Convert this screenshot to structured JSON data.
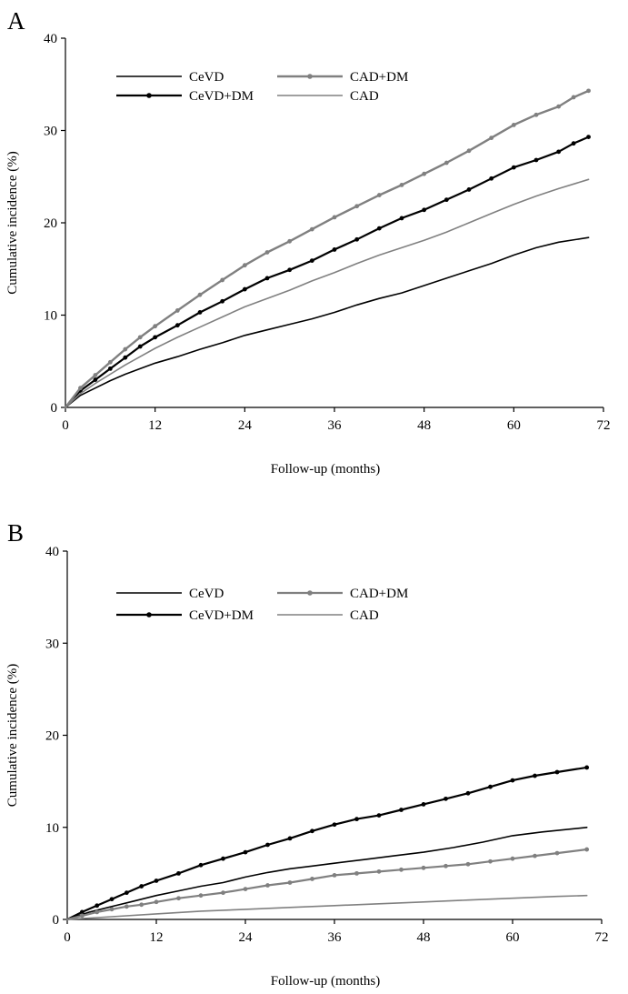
{
  "chart_data": [
    {
      "panel": "A",
      "type": "line",
      "title": "",
      "xlabel": "Follow-up (months)",
      "ylabel": "Cumulative incidence (%)",
      "xlim": [
        0,
        72
      ],
      "ylim": [
        0,
        40
      ],
      "xticks": [
        0,
        12,
        24,
        36,
        48,
        60,
        72
      ],
      "yticks": [
        0,
        10,
        20,
        30,
        40
      ],
      "grid": false,
      "legend_position": "top-left",
      "series": [
        {
          "name": "CeVD",
          "color": "#000000",
          "width": 1.6,
          "markers": false,
          "x": [
            0,
            2,
            4,
            6,
            8,
            10,
            12,
            15,
            18,
            21,
            24,
            27,
            30,
            33,
            36,
            39,
            42,
            45,
            48,
            51,
            54,
            57,
            60,
            63,
            66,
            70
          ],
          "y": [
            0,
            1.3,
            2.1,
            2.9,
            3.6,
            4.2,
            4.8,
            5.5,
            6.3,
            7.0,
            7.8,
            8.4,
            9.0,
            9.6,
            10.3,
            11.1,
            11.8,
            12.4,
            13.2,
            14.0,
            14.8,
            15.6,
            16.5,
            17.3,
            17.9,
            18.4
          ]
        },
        {
          "name": "CeVD+DM",
          "color": "#000000",
          "width": 2.2,
          "markers": true,
          "x": [
            0,
            2,
            4,
            6,
            8,
            10,
            12,
            15,
            18,
            21,
            24,
            27,
            30,
            33,
            36,
            39,
            42,
            45,
            48,
            51,
            54,
            57,
            60,
            63,
            66,
            68,
            70
          ],
          "y": [
            0,
            1.8,
            3.0,
            4.2,
            5.4,
            6.6,
            7.6,
            8.9,
            10.3,
            11.5,
            12.8,
            14.0,
            14.9,
            15.9,
            17.1,
            18.2,
            19.4,
            20.5,
            21.4,
            22.5,
            23.6,
            24.8,
            26.0,
            26.8,
            27.7,
            28.6,
            29.3
          ]
        },
        {
          "name": "CAD+DM",
          "color": "#808080",
          "width": 2.4,
          "markers": true,
          "x": [
            0,
            2,
            4,
            6,
            8,
            10,
            12,
            15,
            18,
            21,
            24,
            27,
            30,
            33,
            36,
            39,
            42,
            45,
            48,
            51,
            54,
            57,
            60,
            63,
            66,
            68,
            70
          ],
          "y": [
            0,
            2.1,
            3.5,
            4.9,
            6.3,
            7.6,
            8.8,
            10.5,
            12.2,
            13.8,
            15.4,
            16.8,
            18.0,
            19.3,
            20.6,
            21.8,
            23.0,
            24.1,
            25.3,
            26.5,
            27.8,
            29.2,
            30.6,
            31.7,
            32.6,
            33.6,
            34.3
          ]
        },
        {
          "name": "CAD",
          "color": "#808080",
          "width": 1.6,
          "markers": false,
          "x": [
            0,
            2,
            4,
            6,
            8,
            10,
            12,
            15,
            18,
            21,
            24,
            27,
            30,
            33,
            36,
            39,
            42,
            45,
            48,
            51,
            54,
            57,
            60,
            63,
            66,
            70
          ],
          "y": [
            0,
            1.5,
            2.6,
            3.6,
            4.6,
            5.5,
            6.4,
            7.6,
            8.7,
            9.8,
            10.9,
            11.8,
            12.7,
            13.7,
            14.6,
            15.6,
            16.5,
            17.3,
            18.1,
            19.0,
            20.0,
            21.0,
            22.0,
            22.9,
            23.7,
            24.7
          ]
        }
      ]
    },
    {
      "panel": "B",
      "type": "line",
      "title": "",
      "xlabel": "Follow-up (months)",
      "ylabel": "Cumulative incidence (%)",
      "xlim": [
        0,
        72
      ],
      "ylim": [
        0,
        40
      ],
      "xticks": [
        0,
        12,
        24,
        36,
        48,
        60,
        72
      ],
      "yticks": [
        0,
        10,
        20,
        30,
        40
      ],
      "grid": false,
      "legend_position": "top-left",
      "series": [
        {
          "name": "CeVD",
          "color": "#000000",
          "width": 1.6,
          "markers": false,
          "x": [
            0,
            3,
            6,
            9,
            12,
            15,
            18,
            21,
            24,
            27,
            30,
            33,
            36,
            40,
            44,
            48,
            52,
            56,
            60,
            64,
            70
          ],
          "y": [
            0,
            0.8,
            1.4,
            2.0,
            2.6,
            3.1,
            3.6,
            4.0,
            4.6,
            5.1,
            5.5,
            5.8,
            6.1,
            6.5,
            6.9,
            7.3,
            7.8,
            8.4,
            9.1,
            9.5,
            10.0
          ]
        },
        {
          "name": "CeVD+DM",
          "color": "#000000",
          "width": 2.2,
          "markers": true,
          "x": [
            0,
            2,
            4,
            6,
            8,
            10,
            12,
            15,
            18,
            21,
            24,
            27,
            30,
            33,
            36,
            39,
            42,
            45,
            48,
            51,
            54,
            57,
            60,
            63,
            66,
            70
          ],
          "y": [
            0,
            0.8,
            1.5,
            2.2,
            2.9,
            3.6,
            4.2,
            5.0,
            5.9,
            6.6,
            7.3,
            8.1,
            8.8,
            9.6,
            10.3,
            10.9,
            11.3,
            11.9,
            12.5,
            13.1,
            13.7,
            14.4,
            15.1,
            15.6,
            16.0,
            16.5
          ]
        },
        {
          "name": "CAD+DM",
          "color": "#808080",
          "width": 2.2,
          "markers": true,
          "x": [
            0,
            2,
            4,
            6,
            8,
            10,
            12,
            15,
            18,
            21,
            24,
            27,
            30,
            33,
            36,
            39,
            42,
            45,
            48,
            51,
            54,
            57,
            60,
            63,
            66,
            70
          ],
          "y": [
            0,
            0.4,
            0.8,
            1.1,
            1.4,
            1.6,
            1.9,
            2.3,
            2.6,
            2.9,
            3.3,
            3.7,
            4.0,
            4.4,
            4.8,
            5.0,
            5.2,
            5.4,
            5.6,
            5.8,
            6.0,
            6.3,
            6.6,
            6.9,
            7.2,
            7.6
          ]
        },
        {
          "name": "CAD",
          "color": "#808080",
          "width": 1.6,
          "markers": false,
          "x": [
            0,
            6,
            12,
            18,
            24,
            30,
            36,
            42,
            48,
            54,
            60,
            66,
            70
          ],
          "y": [
            0,
            0.3,
            0.6,
            0.9,
            1.1,
            1.3,
            1.5,
            1.7,
            1.9,
            2.1,
            2.3,
            2.5,
            2.6
          ]
        }
      ]
    }
  ]
}
